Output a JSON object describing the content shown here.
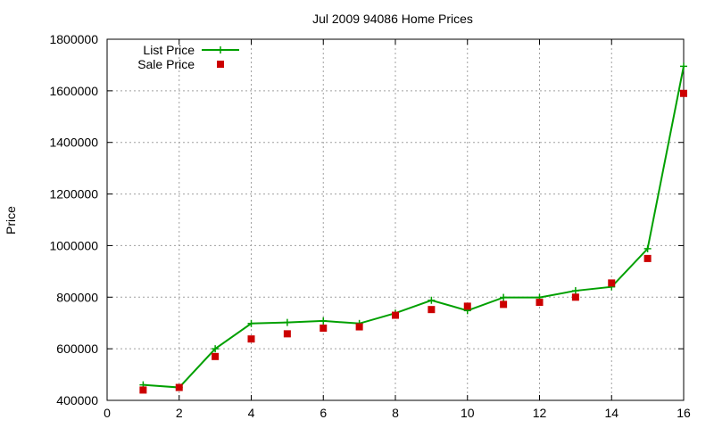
{
  "chart_data": {
    "type": "line",
    "title": "Jul 2009 94086 Home Prices",
    "xlabel": "",
    "ylabel": "Price",
    "xlim": [
      0,
      16
    ],
    "ylim": [
      400000,
      1800000
    ],
    "xticks": [
      0,
      2,
      4,
      6,
      8,
      10,
      12,
      14,
      16
    ],
    "xtick_labels": [
      "0",
      "2",
      "4",
      "6",
      "8",
      "10",
      "12",
      "14",
      "16"
    ],
    "yticks": [
      400000,
      600000,
      800000,
      1000000,
      1200000,
      1400000,
      1600000,
      1800000
    ],
    "ytick_labels": [
      "400000",
      "600000",
      "800000",
      "1000000",
      "1200000",
      "1400000",
      "1600000",
      "1800000"
    ],
    "grid": true,
    "legend_position": "top-left",
    "x": [
      1,
      2,
      3,
      4,
      5,
      6,
      7,
      8,
      9,
      10,
      11,
      12,
      13,
      14,
      15,
      16
    ],
    "series": [
      {
        "name": "List Price",
        "style": "linespoints",
        "marker": "plus",
        "color": "#00a000",
        "values": [
          460000,
          450000,
          600000,
          698000,
          702000,
          708000,
          698000,
          738000,
          788000,
          748000,
          799000,
          799000,
          825000,
          840000,
          988000,
          1695000
        ]
      },
      {
        "name": "Sale Price",
        "style": "points",
        "marker": "square",
        "color": "#cc0000",
        "values": [
          440000,
          450000,
          570000,
          638000,
          658000,
          680000,
          685000,
          730000,
          752000,
          765000,
          772000,
          780000,
          800000,
          855000,
          950000,
          1590000
        ]
      }
    ]
  }
}
